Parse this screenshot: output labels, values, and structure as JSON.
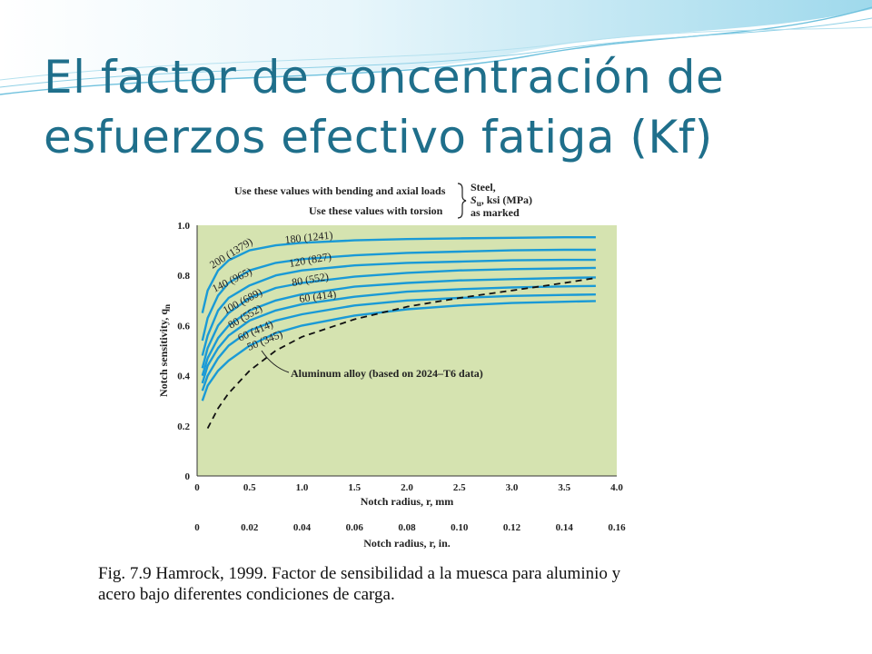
{
  "slide": {
    "title_line1": "El factor de concentración de",
    "title_line2": "esfuerzos efectivo fatiga (Kf)",
    "title_color": "#1f6f8b",
    "caption_line1": "Fig. 7.9 Hamrock, 1999. Factor de sensibilidad a la muesca para aluminio y",
    "caption_line2": "acero bajo diferentes condiciones de carga."
  },
  "chart_data": {
    "type": "line",
    "ylabel": "Notch sensitivity, q",
    "ylabel_sub": "n",
    "xlabel": "Notch radius, r, mm",
    "x2label": "Notch radius, r, in.",
    "xlim": [
      0,
      4.0
    ],
    "ylim": [
      0,
      1.0
    ],
    "x_ticks": [
      "0",
      "0.5",
      "1.0",
      "1.5",
      "2.0",
      "2.5",
      "3.0",
      "3.5",
      "4.0"
    ],
    "x2_ticks": [
      "0",
      "0.02",
      "0.04",
      "0.06",
      "0.08",
      "0.10",
      "0.12",
      "0.14",
      "0.16"
    ],
    "y_ticks": [
      "0",
      "0.2",
      "0.4",
      "0.6",
      "0.8",
      "1.0"
    ],
    "plot_bg": "#d5e3b0",
    "curve_color": "#1a9ad6",
    "legend": {
      "bending_note": "Use these values with bending and axial loads",
      "torsion_note": "Use these values with torsion",
      "steel_label": "Steel,",
      "su_label": "S",
      "su_sub": "u",
      "su_units": ", ksi (MPa)",
      "marked_label": "as marked"
    },
    "annotation": "Aluminum alloy (based on 2024–T6 data)",
    "series": [
      {
        "name": "200 (1379)",
        "x": [
          0.05,
          0.1,
          0.2,
          0.3,
          0.5,
          0.75,
          1.0,
          1.5,
          2.0,
          2.5,
          3.0,
          3.5,
          3.8
        ],
        "y": [
          0.65,
          0.74,
          0.82,
          0.86,
          0.9,
          0.92,
          0.93,
          0.94,
          0.945,
          0.948,
          0.95,
          0.952,
          0.952
        ]
      },
      {
        "name": "180 (1241)",
        "x": [
          0.05,
          0.1,
          0.2,
          0.3,
          0.5,
          0.75,
          1.0,
          1.5,
          2.0,
          2.5,
          3.0,
          3.5,
          3.8
        ],
        "y": [
          0.54,
          0.63,
          0.72,
          0.77,
          0.82,
          0.85,
          0.865,
          0.88,
          0.89,
          0.895,
          0.9,
          0.902,
          0.902
        ]
      },
      {
        "name": "120 (827)",
        "x": [
          0.05,
          0.1,
          0.2,
          0.3,
          0.5,
          0.75,
          1.0,
          1.5,
          2.0,
          2.5,
          3.0,
          3.5,
          3.8
        ],
        "y": [
          0.48,
          0.56,
          0.66,
          0.71,
          0.76,
          0.8,
          0.82,
          0.84,
          0.85,
          0.855,
          0.86,
          0.862,
          0.862
        ]
      },
      {
        "name": "140 (965)",
        "x": [
          0.05,
          0.1,
          0.2,
          0.3,
          0.5,
          0.75,
          1.0,
          1.5,
          2.0,
          2.5,
          3.0,
          3.5,
          3.8
        ],
        "y": [
          0.43,
          0.51,
          0.6,
          0.65,
          0.71,
          0.75,
          0.77,
          0.795,
          0.81,
          0.82,
          0.825,
          0.828,
          0.83
        ]
      },
      {
        "name": "100 (689)",
        "x": [
          0.05,
          0.1,
          0.2,
          0.3,
          0.5,
          0.75,
          1.0,
          1.5,
          2.0,
          2.5,
          3.0,
          3.5,
          3.8
        ],
        "y": [
          0.4,
          0.47,
          0.55,
          0.6,
          0.66,
          0.7,
          0.725,
          0.755,
          0.77,
          0.78,
          0.785,
          0.79,
          0.792
        ]
      },
      {
        "name": "80 (552)",
        "x": [
          0.05,
          0.1,
          0.2,
          0.3,
          0.5,
          0.75,
          1.0,
          1.5,
          2.0,
          2.5,
          3.0,
          3.5,
          3.8
        ],
        "y": [
          0.37,
          0.44,
          0.51,
          0.56,
          0.62,
          0.66,
          0.685,
          0.715,
          0.735,
          0.745,
          0.752,
          0.756,
          0.758
        ]
      },
      {
        "name": "60 (414)",
        "x": [
          0.05,
          0.1,
          0.2,
          0.3,
          0.5,
          0.75,
          1.0,
          1.5,
          2.0,
          2.5,
          3.0,
          3.5,
          3.8
        ],
        "y": [
          0.34,
          0.4,
          0.47,
          0.52,
          0.58,
          0.62,
          0.645,
          0.68,
          0.7,
          0.71,
          0.718,
          0.722,
          0.724
        ]
      },
      {
        "name": "50 (345)",
        "x": [
          0.05,
          0.1,
          0.2,
          0.3,
          0.5,
          0.75,
          1.0,
          1.5,
          2.0,
          2.5,
          3.0,
          3.5,
          3.8
        ],
        "y": [
          0.3,
          0.36,
          0.42,
          0.46,
          0.52,
          0.57,
          0.6,
          0.64,
          0.665,
          0.68,
          0.69,
          0.695,
          0.698
        ]
      },
      {
        "name": "Aluminum alloy",
        "dashed": true,
        "x": [
          0.1,
          0.2,
          0.3,
          0.5,
          0.75,
          1.0,
          1.5,
          2.0,
          2.5,
          3.0,
          3.5,
          3.8
        ],
        "y": [
          0.19,
          0.27,
          0.33,
          0.42,
          0.5,
          0.555,
          0.625,
          0.675,
          0.71,
          0.74,
          0.77,
          0.79
        ]
      }
    ]
  }
}
